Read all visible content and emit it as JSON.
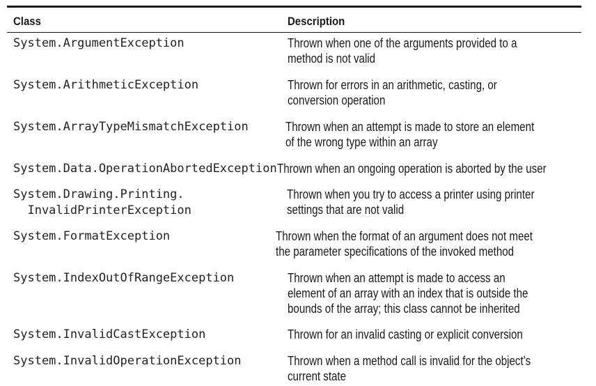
{
  "table": {
    "headers": {
      "class": "Class",
      "description": "Description"
    },
    "rows": [
      {
        "class_lines": [
          "System.ArgumentException"
        ],
        "desc_lines": [
          "Thrown when one of the arguments provided to a",
          "method is not valid"
        ]
      },
      {
        "class_lines": [
          "System.ArithmeticException"
        ],
        "desc_lines": [
          "Thrown for errors in an arithmetic, casting, or",
          "conversion operation"
        ]
      },
      {
        "class_lines": [
          "System.ArrayTypeMismatchException"
        ],
        "desc_lines": [
          "Thrown when an attempt is made to store an element",
          "of the wrong type within an array"
        ]
      },
      {
        "class_lines": [
          "System.Data.OperationAbortedException"
        ],
        "desc_lines": [
          "Thrown when an ongoing operation is aborted by the user"
        ]
      },
      {
        "class_lines": [
          "System.Drawing.Printing.",
          "  InvalidPrinterException"
        ],
        "desc_lines": [
          "Thrown when you try to access a printer using printer",
          "settings that are not valid"
        ]
      },
      {
        "class_lines": [
          "System.FormatException"
        ],
        "desc_lines": [
          "Thrown when the format of an argument does not meet",
          "the parameter specifications of the invoked method"
        ]
      },
      {
        "class_lines": [
          "System.IndexOutOfRangeException"
        ],
        "desc_lines": [
          "Thrown when an attempt is made to access an",
          "element of an array with an index that is outside the",
          "bounds of the array; this class cannot be inherited"
        ]
      },
      {
        "class_lines": [
          "System.InvalidCastException"
        ],
        "desc_lines": [
          "Thrown for an invalid casting or explicit conversion"
        ]
      },
      {
        "class_lines": [
          "System.InvalidOperationException"
        ],
        "desc_lines": [
          "Thrown when a method call is invalid for the object's",
          "current state"
        ]
      }
    ]
  }
}
